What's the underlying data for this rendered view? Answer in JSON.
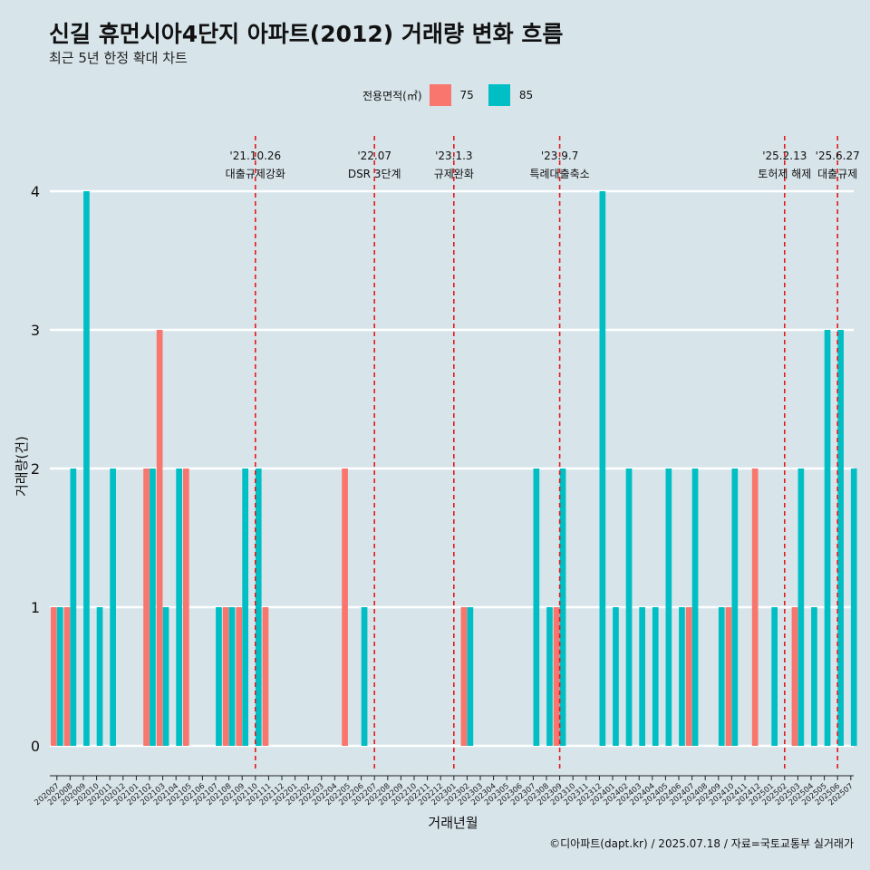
{
  "title": "신길 휴먼시아4단지 아파트(2012) 거래량 변화 흐름",
  "subtitle": "최근 5년 한정 확대 차트",
  "caption": "©디아파트(dapt.kr) / 2025.07.18 / 자료=국토교통부 실거래가",
  "legend": {
    "title": "전용면적(㎡)",
    "items": [
      {
        "label": "75",
        "color": "#f8766d"
      },
      {
        "label": "85",
        "color": "#00bfc4"
      }
    ]
  },
  "chart_data": {
    "type": "bar",
    "xlabel": "거래년월",
    "ylabel": "거래량(건)",
    "ylim": [
      0,
      4
    ],
    "yticks": [
      0,
      1,
      2,
      3,
      4
    ],
    "grid": true,
    "legend_position": "top",
    "categories": [
      "202007",
      "202008",
      "202009",
      "202010",
      "202011",
      "202012",
      "202101",
      "202102",
      "202103",
      "202104",
      "202105",
      "202106",
      "202107",
      "202108",
      "202109",
      "202110",
      "202111",
      "202112",
      "202201",
      "202202",
      "202203",
      "202204",
      "202205",
      "202206",
      "202207",
      "202208",
      "202209",
      "202210",
      "202211",
      "202212",
      "202301",
      "202302",
      "202303",
      "202304",
      "202305",
      "202306",
      "202307",
      "202308",
      "202309",
      "202310",
      "202311",
      "202312",
      "202401",
      "202402",
      "202403",
      "202404",
      "202405",
      "202406",
      "202407",
      "202408",
      "202409",
      "202410",
      "202411",
      "202412",
      "202501",
      "202502",
      "202503",
      "202504",
      "202505",
      "202506",
      "202507"
    ],
    "series": [
      {
        "name": "75",
        "color": "#f8766d",
        "values": [
          1,
          1,
          0,
          0,
          0,
          0,
          0,
          2,
          3,
          0,
          2,
          0,
          0,
          1,
          1,
          0,
          1,
          0,
          0,
          0,
          0,
          0,
          2,
          0,
          0,
          0,
          0,
          0,
          0,
          0,
          0,
          1,
          0,
          0,
          0,
          0,
          0,
          0,
          1,
          0,
          0,
          0,
          0,
          0,
          0,
          0,
          0,
          0,
          1,
          0,
          0,
          1,
          0,
          2,
          0,
          0,
          1,
          0,
          0,
          0,
          0
        ]
      },
      {
        "name": "85",
        "color": "#00bfc4",
        "values": [
          1,
          2,
          4,
          1,
          2,
          0,
          0,
          2,
          1,
          2,
          0,
          0,
          1,
          1,
          2,
          2,
          0,
          0,
          0,
          0,
          0,
          0,
          0,
          1,
          0,
          0,
          0,
          0,
          0,
          0,
          0,
          1,
          0,
          0,
          0,
          0,
          2,
          1,
          2,
          0,
          0,
          4,
          1,
          2,
          1,
          1,
          2,
          1,
          2,
          0,
          1,
          2,
          0,
          0,
          1,
          0,
          2,
          1,
          3,
          3,
          2
        ]
      }
    ],
    "events": [
      {
        "date": "202110",
        "label_top": "'21.10.26",
        "label_bottom": "대출규제강화"
      },
      {
        "date": "202207",
        "label_top": "'22.07",
        "label_bottom": "DSR 3단계"
      },
      {
        "date": "202301",
        "label_top": "'23.1.3",
        "label_bottom": "규제완화"
      },
      {
        "date": "202309",
        "label_top": "'23.9.7",
        "label_bottom": "특례대출축소"
      },
      {
        "date": "202502",
        "label_top": "'25.2.13",
        "label_bottom": "토허제 해제"
      },
      {
        "date": "202506",
        "label_top": "'25.6.27",
        "label_bottom": "대출규제"
      }
    ]
  }
}
